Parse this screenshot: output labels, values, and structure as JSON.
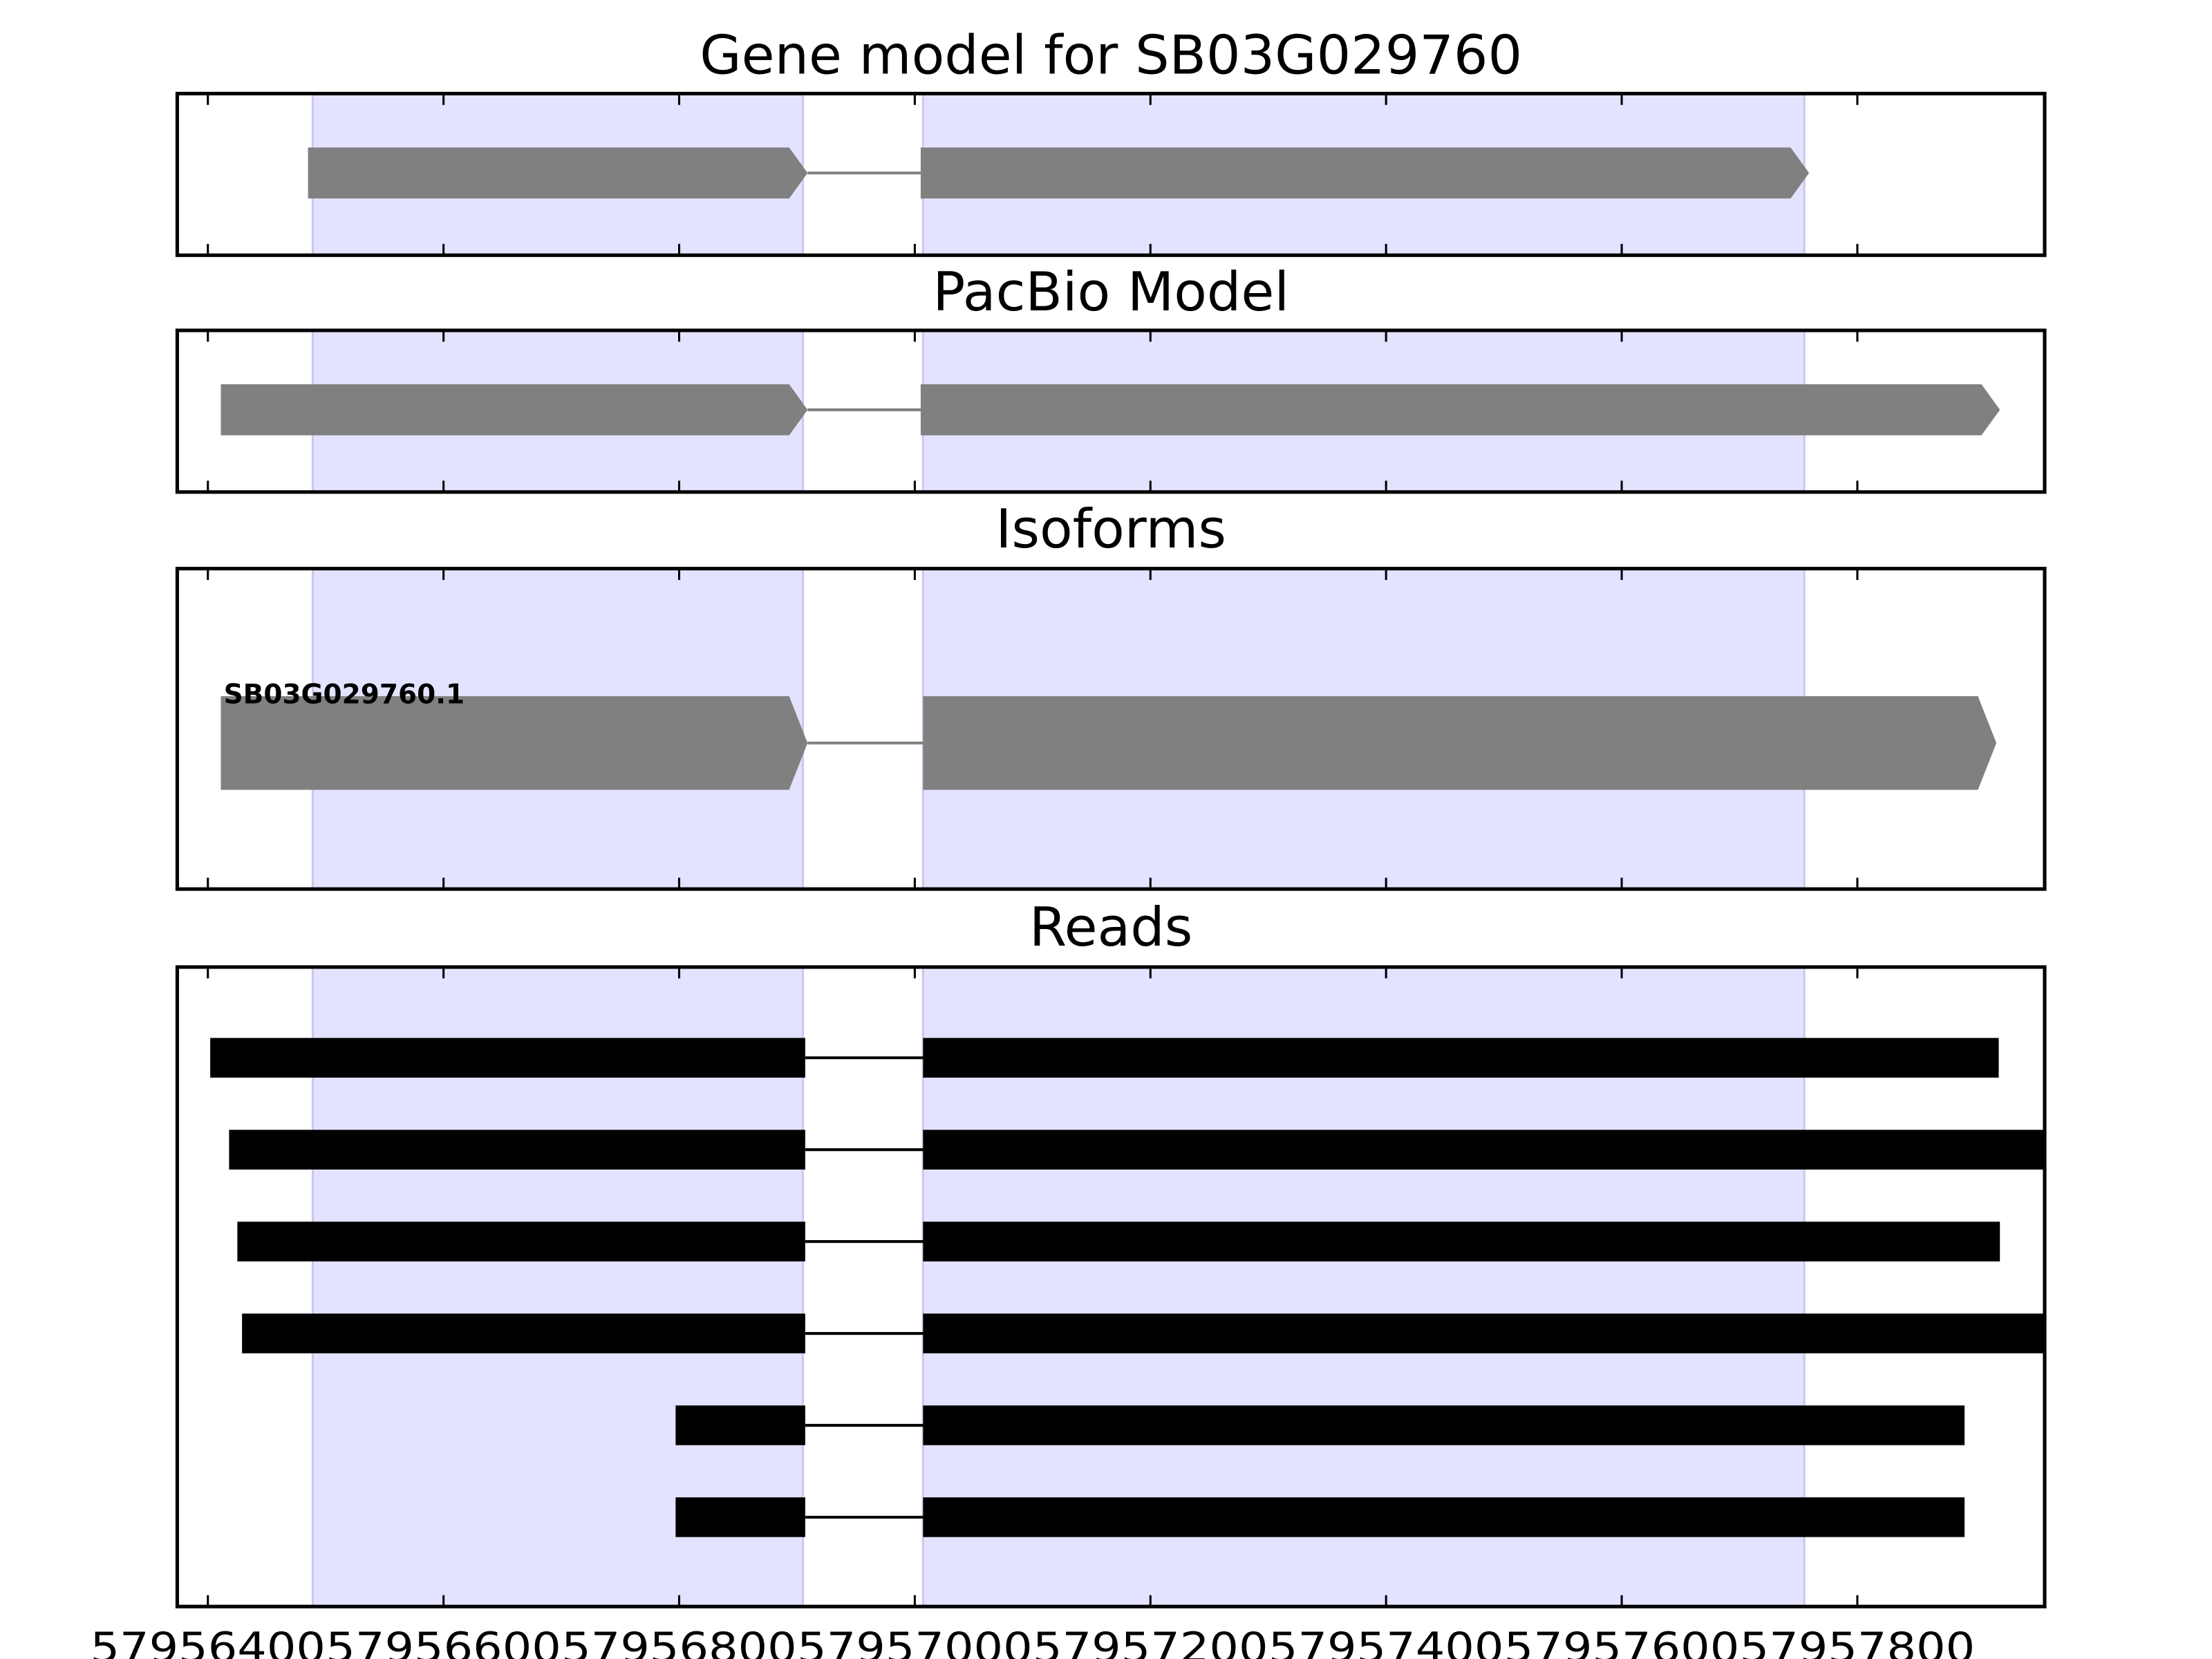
{
  "chart_data": {
    "type": "gene-track",
    "xlim": [
      57956374,
      57957959
    ],
    "x_ticks": [
      57956400,
      57956600,
      57956800,
      57957000,
      57957200,
      57957400,
      57957600,
      57957800
    ],
    "x_tick_labels": [
      "57956400",
      "57956600",
      "57956800",
      "57957000",
      "57957200",
      "57957400",
      "57957600",
      "57957800"
    ],
    "shaded_regions": [
      [
        57956489,
        57956905
      ],
      [
        57957007,
        57957755
      ]
    ],
    "colors": {
      "shade": "#e3e3ff",
      "shade_edge": "#c8c8f0",
      "model": "#808080",
      "reads": "#000000"
    },
    "panels": [
      {
        "title": "Gene model for SB03G029760",
        "kind": "model",
        "features": [
          {
            "exons": [
              [
                57956485,
                57956909
              ],
              [
                57957005,
                57957759
              ]
            ],
            "strand": "+"
          }
        ]
      },
      {
        "title": "PacBio Model",
        "kind": "model",
        "features": [
          {
            "exons": [
              [
                57956411,
                57956909
              ],
              [
                57957005,
                57957921
              ]
            ],
            "strand": "+"
          }
        ]
      },
      {
        "title": "Isoforms",
        "kind": "isoform",
        "features": [
          {
            "label": "SB03G029760.1",
            "exons": [
              [
                57956411,
                57956909
              ],
              [
                57957007,
                57957918
              ]
            ],
            "strand": "+"
          }
        ]
      },
      {
        "title": "Reads",
        "kind": "reads",
        "features": [
          {
            "exons": [
              [
                57956402,
                57956907
              ],
              [
                57957007,
                57957920
              ]
            ]
          },
          {
            "exons": [
              [
                57956418,
                57956907
              ],
              [
                57957007,
                57957959
              ]
            ]
          },
          {
            "exons": [
              [
                57956425,
                57956907
              ],
              [
                57957007,
                57957921
              ]
            ]
          },
          {
            "exons": [
              [
                57956429,
                57956907
              ],
              [
                57957007,
                57957959
              ]
            ]
          },
          {
            "exons": [
              [
                57956797,
                57956907
              ],
              [
                57957007,
                57957891
              ]
            ]
          },
          {
            "exons": [
              [
                57956797,
                57956907
              ],
              [
                57957007,
                57957891
              ]
            ]
          }
        ]
      }
    ]
  }
}
